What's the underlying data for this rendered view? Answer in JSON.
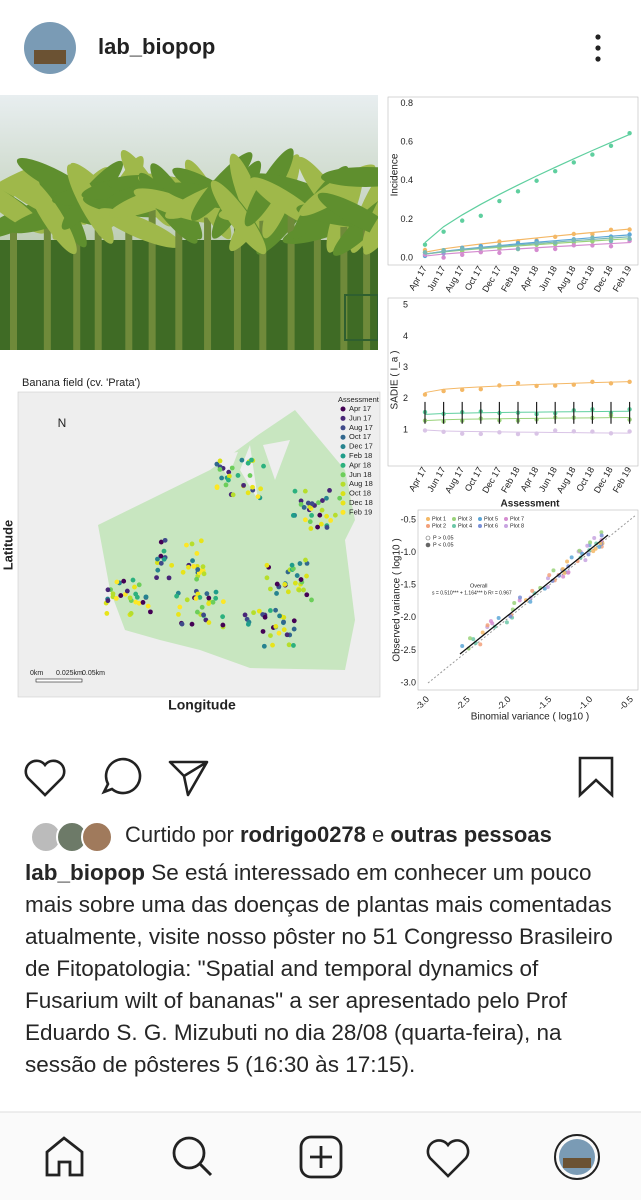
{
  "header": {
    "username": "lab_biopop"
  },
  "post_image": {
    "assessment_dates": [
      "Apr 17",
      "Jun 17",
      "Aug 17",
      "Oct 17",
      "Dec 17",
      "Feb 18",
      "Apr 18",
      "Jun 18",
      "Aug 18",
      "Oct 18",
      "Dec 18",
      "Feb 19"
    ],
    "map": {
      "title": "Banana field (cv. 'Prata')",
      "north": "N",
      "legend_title": "Assessment",
      "scale": [
        "0km",
        "0.025km",
        "0.05km"
      ],
      "x_label": "Longitude",
      "y_label": "Latitude"
    },
    "incidence": {
      "y_label": "Incidence",
      "yticks": [
        "0.0",
        "0.2",
        "0.4",
        "0.6",
        "0.8"
      ]
    },
    "sadie": {
      "y_label": "SADIE ( I_a )",
      "yticks": [
        "1",
        "2",
        "3",
        "4",
        "5"
      ],
      "x_label": "Assessment"
    },
    "variance": {
      "legend": [
        "Plot 1",
        "Plot 2",
        "Plot 3",
        "Plot 4",
        "Plot 5",
        "Plot 6",
        "Plot 7",
        "Plot 8"
      ],
      "significance": [
        "P > 0.05",
        "P < 0.05"
      ],
      "overall": "Overall",
      "equation": "s = 0.510*** + 1.164*** b   R² = 0.967",
      "y_label": "Observed variance ( log10 )",
      "x_label": "Binomial variance ( log10 )",
      "yticks": [
        "-0.5",
        "-1.0",
        "-1.5",
        "-2.0",
        "-2.5",
        "-3.0"
      ],
      "xticks": [
        "-3.0",
        "-2.5",
        "-2.0",
        "-1.5",
        "-1.0",
        "-0.5"
      ]
    }
  },
  "likes": {
    "prefix": "Curtido por",
    "user": "rodrigo0278",
    "joiner": "e",
    "others": "outras pessoas"
  },
  "caption": {
    "username": "lab_biopop",
    "text": "Se está interessado em conhecer um pouco mais sobre uma das doenças de plantas mais comentadas atualmente, visite nosso pôster no 51 Congresso Brasileiro de Fitopatologia: \"Spatial and temporal dynamics of Fusarium wilt of bananas\" a ser apresentado pelo Prof Eduardo S. G. Mizubuti no dia 28/08 (quarta-feira), na sessão de pôsteres 5 (16:30 às 17:15)."
  }
}
